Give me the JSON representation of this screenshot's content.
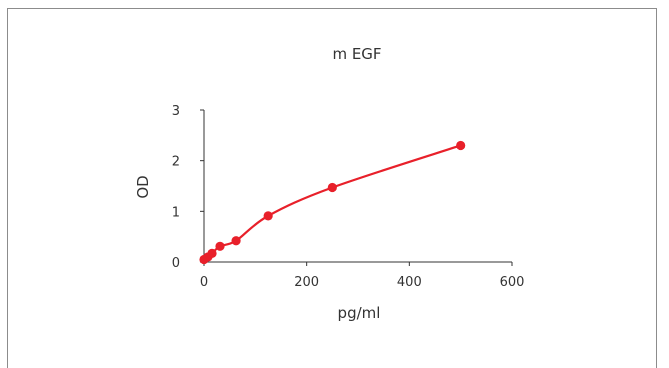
{
  "chart_data": {
    "type": "line",
    "title": "m EGF",
    "xlabel": "pg/ml",
    "ylabel": "OD",
    "xlim": [
      0,
      600
    ],
    "ylim": [
      0,
      3
    ],
    "xticks": [
      "0",
      "200",
      "400",
      "600"
    ],
    "yticks": [
      "0",
      "1",
      "2",
      "3"
    ],
    "grid": false,
    "series": [
      {
        "x": [
          0,
          7.8,
          15.6,
          31.2,
          62.5,
          125,
          250,
          500
        ],
        "y": [
          0.05,
          0.1,
          0.17,
          0.31,
          0.42,
          0.91,
          1.47,
          2.3
        ],
        "color": "#e8202a",
        "markers": true,
        "smooth": true
      }
    ]
  },
  "colors": {
    "series": "#e8202a",
    "axis": "#333333",
    "frame": "#8c8c8c"
  }
}
